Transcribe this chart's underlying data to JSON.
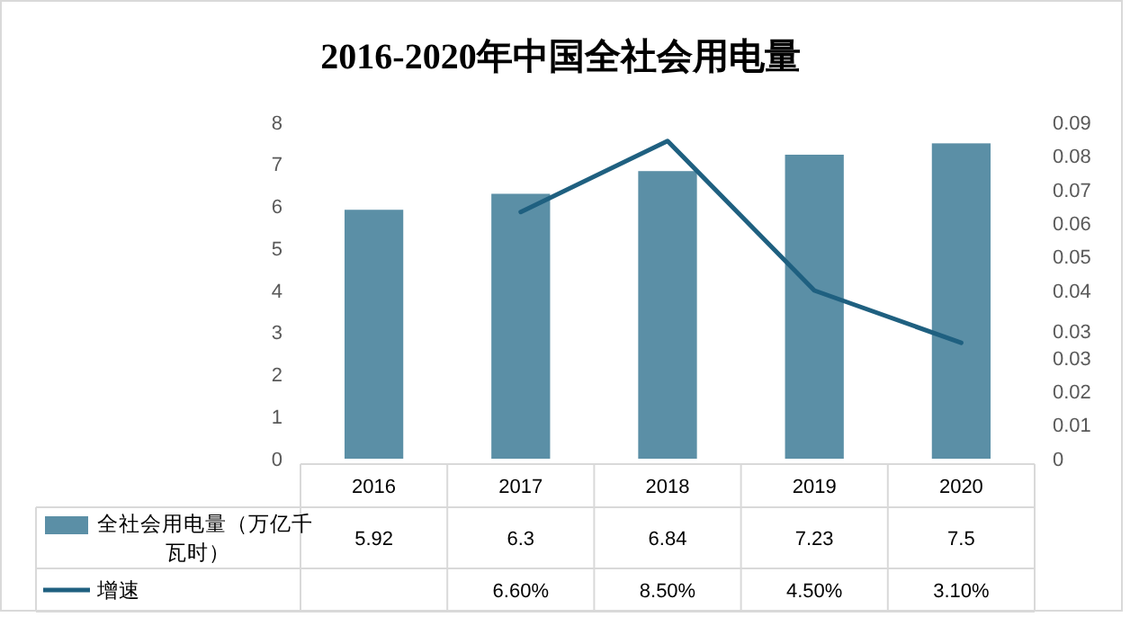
{
  "chart_data": {
    "type": "bar",
    "title": "2016-2020年中国全社会用电量",
    "categories": [
      "2016",
      "2017",
      "2018",
      "2019",
      "2020"
    ],
    "legend": "bottom",
    "ylim": [
      0,
      8
    ],
    "yticks": [
      0,
      1,
      2,
      3,
      4,
      5,
      6,
      7,
      8
    ],
    "y2lim": [
      0,
      0.09
    ],
    "y2ticks": [
      0,
      {
        "value": 0.009,
        "label": "0.01"
      },
      {
        "value": 0.018,
        "label": "0.02"
      },
      {
        "value": 0.027,
        "label": "0.03"
      },
      {
        "value": 0.034,
        "label": "0.03"
      },
      {
        "value": 0.045,
        "label": "0.04"
      },
      {
        "value": 0.054,
        "label": "0.05"
      },
      {
        "value": 0.063,
        "label": "0.06"
      },
      {
        "value": 0.072,
        "label": "0.07"
      },
      {
        "value": 0.081,
        "label": "0.08"
      },
      {
        "value": 0.09,
        "label": "0.09"
      }
    ],
    "series": [
      {
        "name": "全社会用电量（万亿千瓦时）",
        "color": "#5b8fa6",
        "values": [
          5.92,
          6.3,
          6.84,
          7.23,
          7.5
        ],
        "value_labels": [
          "5.92",
          "6.3",
          "6.84",
          "7.23",
          "7.5"
        ]
      },
      {
        "name": "增速",
        "type": "line",
        "axis": "y2",
        "color": "#1f6080",
        "values": [
          null,
          0.066,
          0.085,
          0.045,
          0.031
        ],
        "value_labels": [
          null,
          "6.60%",
          "8.50%",
          "4.50%",
          "3.10%"
        ]
      }
    ]
  }
}
